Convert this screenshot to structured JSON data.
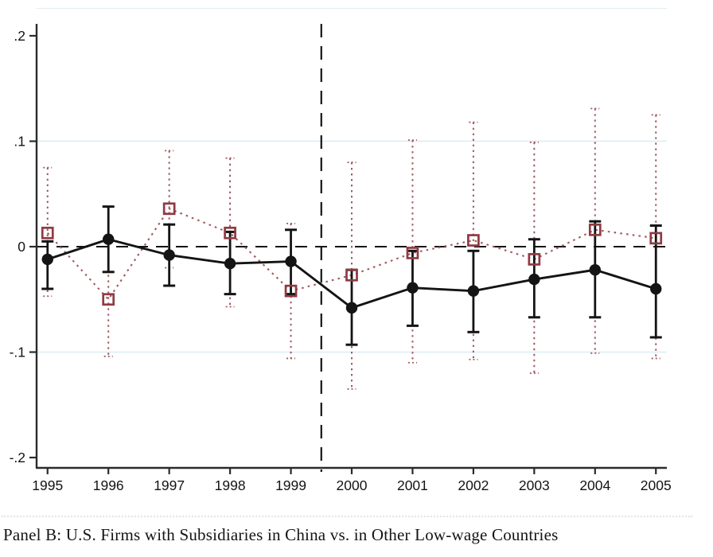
{
  "figure": {
    "caption": "Panel B: U.S. Firms with Subsidiaries in China vs. in Other Low-wage Countries"
  },
  "chart_data": {
    "type": "line",
    "subtype": "event-study with confidence intervals",
    "title": "",
    "xlabel": "",
    "ylabel": "",
    "x": [
      1995,
      1996,
      1997,
      1998,
      1999,
      2000,
      2001,
      2002,
      2003,
      2004,
      2005
    ],
    "xlim": [
      1994.82,
      2005.18
    ],
    "ylim": [
      -0.2098,
      0.2113
    ],
    "yticks": {
      "values": [
        0.2,
        0.1,
        0,
        -0.1,
        -0.2
      ],
      "labels": [
        ".2",
        ".1",
        "0",
        "-.1",
        "-.2"
      ]
    },
    "gridlines_at": [
      0.1,
      -0.1
    ],
    "grid_color": "#dcedf2",
    "reference_lines": {
      "horizontal": 0,
      "vertical": 1999.5,
      "style": "dashed",
      "color": "#141414"
    },
    "legend": "none",
    "series": [
      {
        "name": "U.S. firms with subsidiaries in China",
        "marker": "filled-circle",
        "line_style": "solid",
        "color": "#141414",
        "values": [
          -0.012,
          0.007,
          -0.008,
          -0.016,
          -0.014,
          -0.058,
          -0.039,
          -0.042,
          -0.031,
          -0.022,
          -0.04
        ],
        "ci_low": [
          -0.04,
          -0.024,
          -0.037,
          -0.045,
          -0.045,
          -0.093,
          -0.075,
          -0.081,
          -0.067,
          -0.067,
          -0.086
        ],
        "ci_high": [
          0.005,
          0.038,
          0.021,
          0.014,
          0.016,
          -0.022,
          -0.004,
          -0.004,
          0.007,
          0.024,
          0.02
        ]
      },
      {
        "name": "U.S. firms with subsidiaries in other low-wage countries",
        "marker": "hollow-square",
        "line_style": "dotted",
        "color": "#8f3a42",
        "ci_color": "#a05a60",
        "values": [
          0.013,
          -0.05,
          0.036,
          0.013,
          -0.042,
          -0.027,
          -0.006,
          0.006,
          -0.012,
          0.016,
          0.008
        ],
        "ci_low": [
          -0.047,
          -0.104,
          -0.02,
          -0.057,
          -0.106,
          -0.135,
          -0.11,
          -0.107,
          -0.12,
          -0.101,
          -0.106
        ],
        "ci_high": [
          0.075,
          0.005,
          0.091,
          0.084,
          0.022,
          0.08,
          0.101,
          0.118,
          0.099,
          0.131,
          0.125
        ]
      }
    ]
  }
}
